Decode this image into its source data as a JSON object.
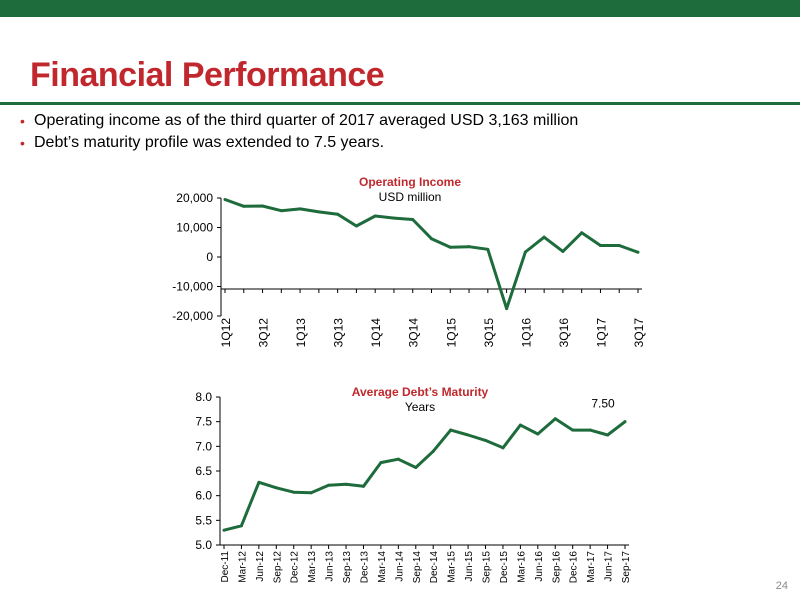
{
  "header": {
    "title": "Financial Performance",
    "bullets": [
      "Operating income as of the third quarter of 2017 averaged USD 3,163 million",
      "Debt’s maturity profile was extended to 7.5 years."
    ]
  },
  "colors": {
    "accent_green": "#1e6b3c",
    "title_red": "#c0282d",
    "line": "#1e6b3c"
  },
  "page_number": "24",
  "chart_data": [
    {
      "type": "line",
      "title": "Operating Income",
      "subtitle": "USD million",
      "ylim": [
        -20000,
        20000
      ],
      "yticks": [
        "20,000",
        "10,000",
        "0",
        "-10,000",
        "-20,000"
      ],
      "ytick_values": [
        20000,
        10000,
        0,
        -10000,
        -20000
      ],
      "categories": [
        "1Q12",
        "2Q12",
        "3Q12",
        "4Q12",
        "1Q13",
        "2Q13",
        "3Q13",
        "4Q13",
        "1Q14",
        "2Q14",
        "3Q14",
        "4Q14",
        "1Q15",
        "2Q15",
        "3Q15",
        "4Q15",
        "1Q16",
        "2Q16",
        "3Q16",
        "4Q16",
        "1Q17",
        "2Q17",
        "3Q17"
      ],
      "xtick_labels": [
        "1Q12",
        "",
        "3Q12",
        "",
        "1Q13",
        "",
        "3Q13",
        "",
        "1Q14",
        "",
        "3Q14",
        "",
        "1Q15",
        "",
        "3Q15",
        "",
        "1Q16",
        "",
        "3Q16",
        "",
        "1Q17",
        "",
        "3Q17"
      ],
      "values": [
        19500,
        17200,
        17300,
        15700,
        16300,
        15300,
        14500,
        10500,
        13900,
        13200,
        12700,
        6200,
        3300,
        3500,
        2600,
        -17500,
        1700,
        6700,
        1900,
        8200,
        3900,
        3900,
        1600
      ]
    },
    {
      "type": "line",
      "title": "Average Debt’s Maturity",
      "subtitle": "Years",
      "ylim": [
        5.0,
        8.0
      ],
      "yticks": [
        "8.0",
        "7.5",
        "7.0",
        "6.5",
        "6.0",
        "5.5",
        "5.0"
      ],
      "ytick_values": [
        8.0,
        7.5,
        7.0,
        6.5,
        6.0,
        5.5,
        5.0
      ],
      "categories": [
        "Dec-11",
        "Mar-12",
        "Jun-12",
        "Sep-12",
        "Dec-12",
        "Mar-13",
        "Jun-13",
        "Sep-13",
        "Dec-13",
        "Mar-14",
        "Jun-14",
        "Sep-14",
        "Dec-14",
        "Mar-15",
        "Jun-15",
        "Sep-15",
        "Dec-15",
        "Mar-16",
        "Jun-16",
        "Sep-16",
        "Dec-16",
        "Mar-17",
        "Jun-17",
        "Sep-17"
      ],
      "values": [
        5.3,
        5.39,
        6.27,
        6.16,
        6.07,
        6.06,
        6.21,
        6.23,
        6.19,
        6.67,
        6.74,
        6.57,
        6.9,
        7.33,
        7.23,
        7.12,
        6.97,
        7.43,
        7.25,
        7.56,
        7.33,
        7.33,
        7.23,
        7.5
      ],
      "annotations": [
        {
          "text": "7.50",
          "category": "Sep-17"
        }
      ]
    }
  ]
}
